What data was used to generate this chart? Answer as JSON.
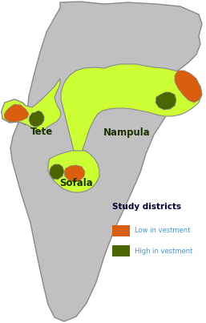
{
  "background_color": "#ffffff",
  "country_fill": "#c0c0c0",
  "country_edge": "#888888",
  "province_tete_fill": "#ccff33",
  "province_nampula_fill": "#ccff33",
  "province_sofala_fill": "#ccff33",
  "low_investment_color": "#d95f0e",
  "high_investment_color": "#4a6600",
  "legend_title": "Study districts",
  "legend_title_color": "#000033",
  "legend_label_color": "#4499cc",
  "label_tete": "Tete",
  "label_nampula": "Nampula",
  "label_sofala": "Sofala",
  "figsize": [
    2.57,
    4.03
  ],
  "dpi": 100,
  "xlim": [
    0,
    257
  ],
  "ylim": [
    0,
    403
  ]
}
